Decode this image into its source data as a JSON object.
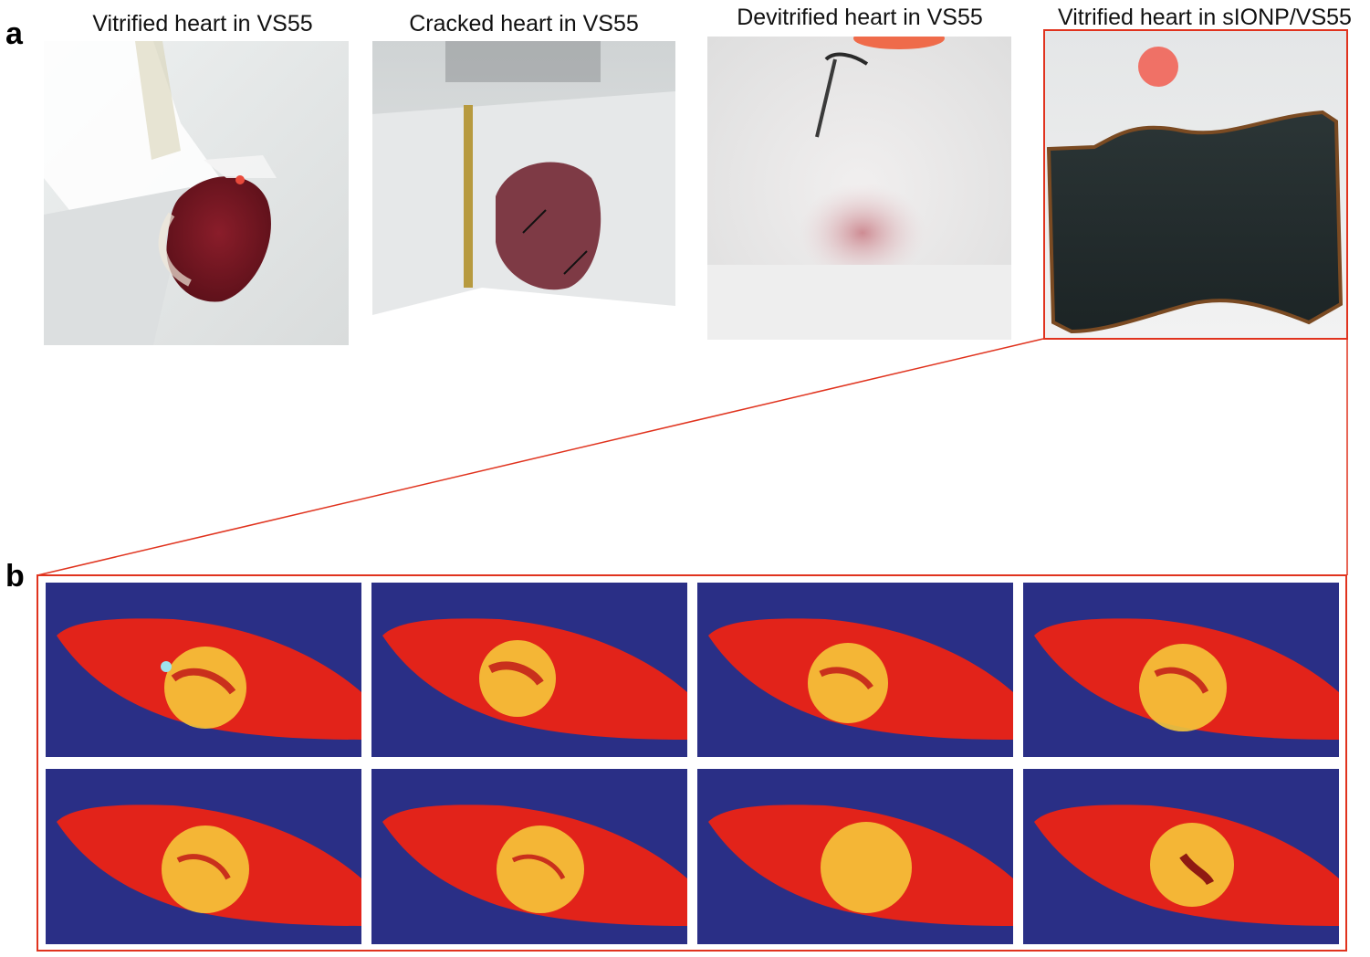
{
  "figure": {
    "panel_a_label": "a",
    "panel_b_label": "b",
    "panel_a": [
      {
        "caption": "Vitrified heart in VS55"
      },
      {
        "caption": "Cracked heart in VS55"
      },
      {
        "caption": "Devitrified heart in VS55"
      },
      {
        "caption": "Vitrified heart in sIONP/VS55"
      }
    ]
  },
  "colors": {
    "highlight_red": "#e0331e",
    "scan_background": "#2a2f86",
    "scan_tissue": "#e2231a",
    "scan_hot": "#f6d23a"
  }
}
